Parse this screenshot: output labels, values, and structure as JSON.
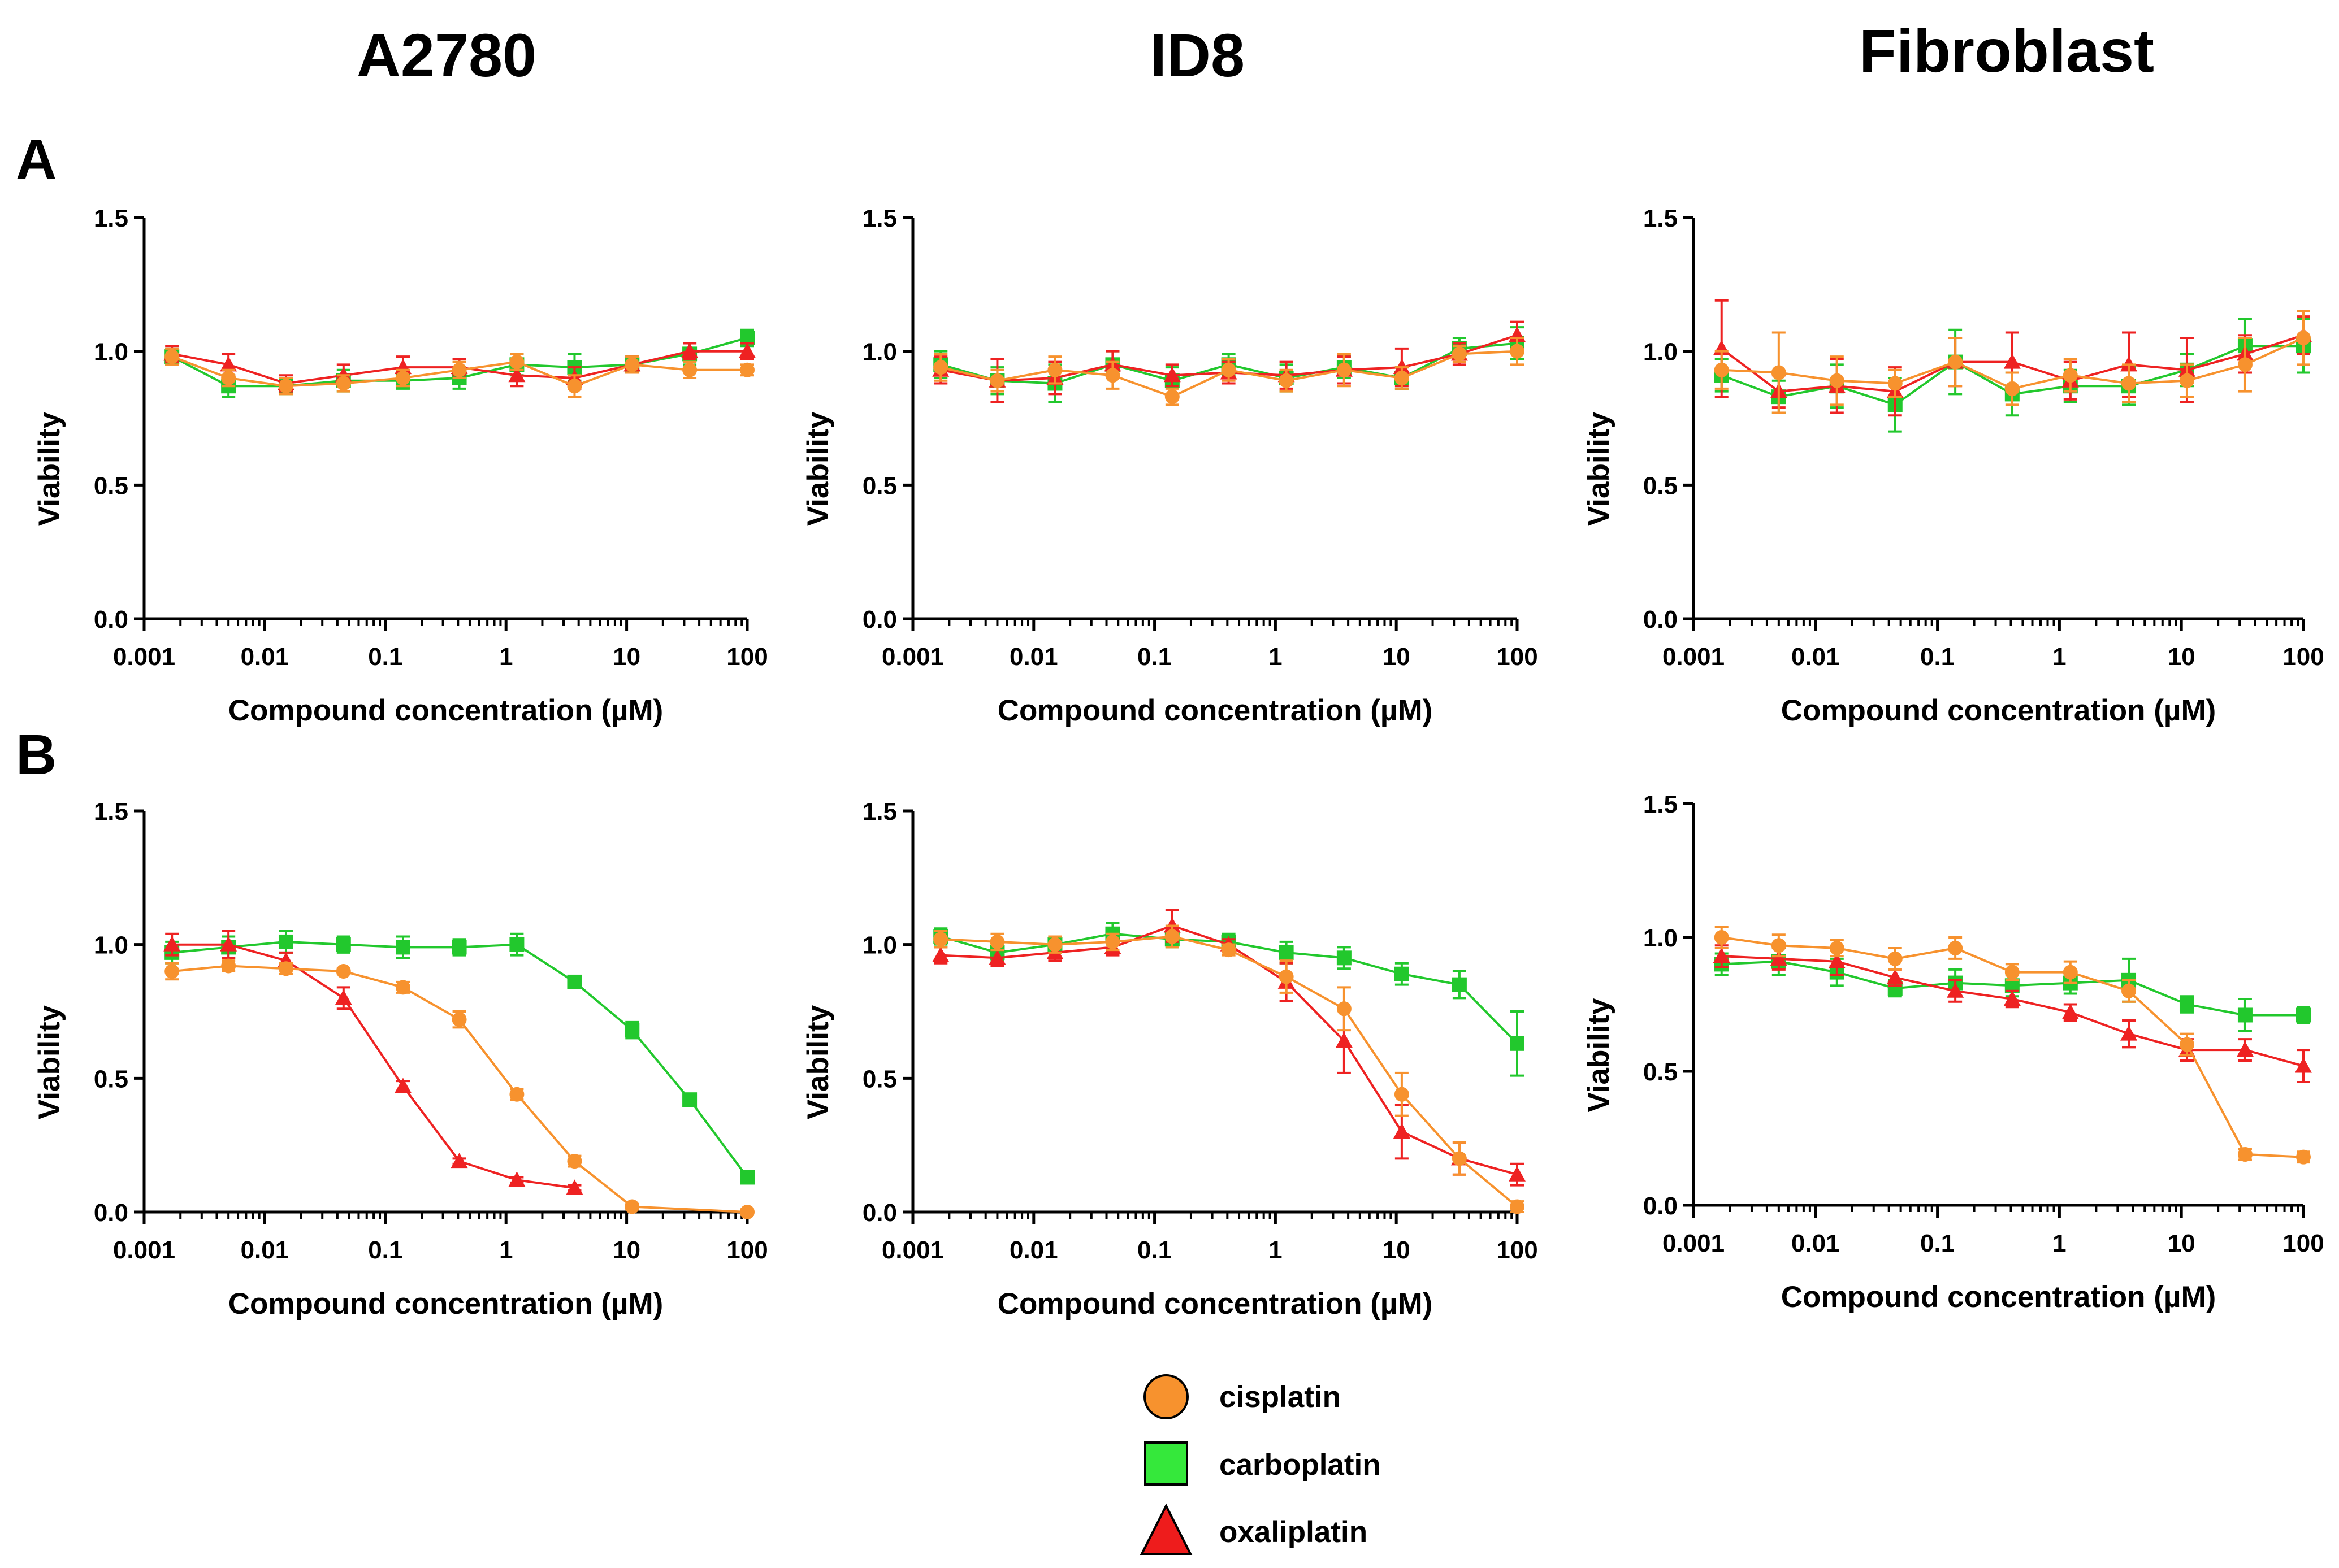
{
  "figure": {
    "columns": [
      "A2780",
      "ID8",
      "Fibroblast"
    ],
    "rows": [
      "A",
      "B"
    ]
  },
  "colors": {
    "cisplatin": "#f7922e",
    "carboplatin": "#22c82d",
    "oxaliplatin": "#ee2222"
  },
  "legend": [
    {
      "name": "cisplatin",
      "marker": "circle",
      "color": "#f7922e"
    },
    {
      "name": "carboplatin",
      "marker": "square",
      "color": "#35e83b"
    },
    {
      "name": "oxaliplatin",
      "marker": "triangle",
      "color": "#ee1c1c"
    }
  ],
  "chart_data": [
    {
      "id": "A-A2780",
      "type": "line",
      "row": "A",
      "column": "A2780",
      "xlabel": "Compound concentration (µM)",
      "ylabel": "Viability",
      "xscale": "log",
      "xlim": [
        0.001,
        100
      ],
      "ylim": [
        0,
        1.5
      ],
      "xticks": [
        "0.001",
        "0.01",
        "0.1",
        "1",
        "10",
        "100"
      ],
      "yticks": [
        "0.0",
        "0.5",
        "1.0",
        "1.5"
      ],
      "x": [
        0.0017,
        0.005,
        0.015,
        0.045,
        0.14,
        0.41,
        1.23,
        3.7,
        11.1,
        33.3,
        100
      ],
      "series": [
        {
          "name": "cisplatin",
          "values": [
            0.98,
            0.9,
            0.87,
            0.88,
            0.9,
            0.93,
            0.96,
            0.87,
            0.95,
            0.93,
            0.93
          ],
          "error": [
            0.03,
            0.03,
            0.03,
            0.03,
            0.03,
            0.03,
            0.03,
            0.04,
            0.03,
            0.03,
            0.02
          ]
        },
        {
          "name": "carboplatin",
          "values": [
            0.98,
            0.87,
            0.87,
            0.89,
            0.89,
            0.9,
            0.95,
            0.94,
            0.95,
            0.99,
            1.05
          ],
          "error": [
            0.03,
            0.04,
            0.03,
            0.04,
            0.03,
            0.04,
            0.04,
            0.05,
            0.03,
            0.04,
            0.03
          ]
        },
        {
          "name": "oxaliplatin",
          "values": [
            0.99,
            0.95,
            0.88,
            0.91,
            0.94,
            0.94,
            0.91,
            0.9,
            0.95,
            1.0,
            1.0
          ],
          "error": [
            0.03,
            0.04,
            0.03,
            0.04,
            0.04,
            0.03,
            0.04,
            0.04,
            0.03,
            0.03,
            0.03
          ]
        }
      ]
    },
    {
      "id": "A-ID8",
      "type": "line",
      "row": "A",
      "column": "ID8",
      "xlabel": "Compound concentration (µM)",
      "ylabel": "Viability",
      "xscale": "log",
      "xlim": [
        0.001,
        100
      ],
      "ylim": [
        0,
        1.5
      ],
      "xticks": [
        "0.001",
        "0.01",
        "0.1",
        "1",
        "10",
        "100"
      ],
      "yticks": [
        "0.0",
        "0.5",
        "1.0",
        "1.5"
      ],
      "x": [
        0.0017,
        0.005,
        0.015,
        0.045,
        0.14,
        0.41,
        1.23,
        3.7,
        11.1,
        33.3,
        100
      ],
      "series": [
        {
          "name": "cisplatin",
          "values": [
            0.94,
            0.89,
            0.93,
            0.91,
            0.83,
            0.93,
            0.89,
            0.93,
            0.9,
            0.99,
            1.0
          ],
          "error": [
            0.05,
            0.04,
            0.05,
            0.05,
            0.03,
            0.04,
            0.04,
            0.06,
            0.04,
            0.03,
            0.05
          ]
        },
        {
          "name": "carboplatin",
          "values": [
            0.95,
            0.89,
            0.88,
            0.95,
            0.89,
            0.95,
            0.9,
            0.94,
            0.9,
            1.01,
            1.03
          ],
          "error": [
            0.05,
            0.05,
            0.07,
            0.05,
            0.05,
            0.04,
            0.05,
            0.04,
            0.04,
            0.04,
            0.06
          ]
        },
        {
          "name": "oxaliplatin",
          "values": [
            0.93,
            0.89,
            0.9,
            0.95,
            0.91,
            0.92,
            0.91,
            0.93,
            0.94,
            0.99,
            1.06
          ],
          "error": [
            0.05,
            0.08,
            0.06,
            0.05,
            0.04,
            0.04,
            0.05,
            0.05,
            0.07,
            0.04,
            0.05
          ]
        }
      ]
    },
    {
      "id": "A-Fibroblast",
      "type": "line",
      "row": "A",
      "column": "Fibroblast",
      "xlabel": "Compound concentration (µM)",
      "ylabel": "Viability",
      "xscale": "log",
      "xlim": [
        0.001,
        100
      ],
      "ylim": [
        0,
        1.5
      ],
      "xticks": [
        "0.001",
        "0.01",
        "0.1",
        "1",
        "10",
        "100"
      ],
      "yticks": [
        "0.0",
        "0.5",
        "1.0",
        "1.5"
      ],
      "x": [
        0.0017,
        0.005,
        0.015,
        0.045,
        0.14,
        0.41,
        1.23,
        3.7,
        11.1,
        33.3,
        100
      ],
      "series": [
        {
          "name": "cisplatin",
          "values": [
            0.93,
            0.92,
            0.89,
            0.88,
            0.96,
            0.86,
            0.91,
            0.88,
            0.89,
            0.95,
            1.05
          ],
          "error": [
            0.07,
            0.15,
            0.09,
            0.05,
            0.09,
            0.06,
            0.06,
            0.07,
            0.06,
            0.1,
            0.1
          ]
        },
        {
          "name": "carboplatin",
          "values": [
            0.91,
            0.83,
            0.87,
            0.8,
            0.96,
            0.84,
            0.87,
            0.87,
            0.93,
            1.02,
            1.02
          ],
          "error": [
            0.06,
            0.06,
            0.08,
            0.1,
            0.12,
            0.08,
            0.06,
            0.07,
            0.06,
            0.1,
            0.1
          ]
        },
        {
          "name": "oxaliplatin",
          "values": [
            1.01,
            0.85,
            0.87,
            0.85,
            0.96,
            0.96,
            0.89,
            0.95,
            0.93,
            0.99,
            1.06
          ],
          "error": [
            0.18,
            0.06,
            0.1,
            0.09,
            0.09,
            0.11,
            0.07,
            0.12,
            0.12,
            0.07,
            0.07
          ]
        }
      ]
    },
    {
      "id": "B-A2780",
      "type": "line",
      "row": "B",
      "column": "A2780",
      "xlabel": "Compound concentration (µM)",
      "ylabel": "Viability",
      "xscale": "log",
      "xlim": [
        0.001,
        100
      ],
      "ylim": [
        0,
        1.5
      ],
      "xticks": [
        "0.001",
        "0.01",
        "0.1",
        "1",
        "10",
        "100"
      ],
      "yticks": [
        "0.0",
        "0.5",
        "1.0",
        "1.5"
      ],
      "x": [
        0.0017,
        0.005,
        0.015,
        0.045,
        0.14,
        0.41,
        1.23,
        3.7,
        11.1,
        33.3,
        100
      ],
      "series": [
        {
          "name": "cisplatin",
          "values": [
            0.9,
            0.92,
            0.91,
            0.9,
            0.84,
            0.72,
            0.44,
            0.19,
            0.02,
            null,
            0.0
          ],
          "error": [
            0.03,
            0.02,
            0.02,
            0.01,
            0.02,
            0.03,
            0.02,
            0.02,
            0.01,
            null,
            0.01
          ]
        },
        {
          "name": "carboplatin",
          "values": [
            0.97,
            0.99,
            1.01,
            1.0,
            0.99,
            0.99,
            1.0,
            0.86,
            0.68,
            0.42,
            0.13
          ],
          "error": [
            0.04,
            0.04,
            0.04,
            0.03,
            0.04,
            0.03,
            0.04,
            0.02,
            0.03,
            0.02,
            0.02
          ]
        },
        {
          "name": "oxaliplatin",
          "values": [
            1.0,
            1.0,
            0.94,
            0.8,
            0.47,
            0.19,
            0.12,
            0.09,
            null,
            null,
            null
          ],
          "error": [
            0.04,
            0.05,
            0.03,
            0.04,
            0.02,
            0.01,
            0.01,
            0.01,
            null,
            null,
            null
          ]
        }
      ]
    },
    {
      "id": "B-ID8",
      "type": "line",
      "row": "B",
      "column": "ID8",
      "xlabel": "Compound concentration (µM)",
      "ylabel": "Viability",
      "xscale": "log",
      "xlim": [
        0.001,
        100
      ],
      "ylim": [
        0,
        1.5
      ],
      "xticks": [
        "0.001",
        "0.01",
        "0.1",
        "1",
        "10",
        "100"
      ],
      "yticks": [
        "0.0",
        "0.5",
        "1.0",
        "1.5"
      ],
      "x": [
        0.0017,
        0.005,
        0.015,
        0.045,
        0.14,
        0.41,
        1.23,
        3.7,
        11.1,
        33.3,
        100
      ],
      "series": [
        {
          "name": "cisplatin",
          "values": [
            1.02,
            1.01,
            1.0,
            1.01,
            1.03,
            0.98,
            0.88,
            0.76,
            0.44,
            0.2,
            0.02
          ],
          "error": [
            0.03,
            0.03,
            0.03,
            0.03,
            0.04,
            0.02,
            0.06,
            0.08,
            0.08,
            0.06,
            0.02
          ]
        },
        {
          "name": "carboplatin",
          "values": [
            1.03,
            0.97,
            1.0,
            1.04,
            1.02,
            1.01,
            0.97,
            0.95,
            0.89,
            0.85,
            0.63
          ],
          "error": [
            0.03,
            0.03,
            0.03,
            0.04,
            0.03,
            0.03,
            0.04,
            0.04,
            0.04,
            0.05,
            0.12
          ]
        },
        {
          "name": "oxaliplatin",
          "values": [
            0.96,
            0.95,
            0.97,
            0.99,
            1.07,
            1.0,
            0.86,
            0.64,
            0.3,
            0.2,
            0.14
          ],
          "error": [
            0.03,
            0.03,
            0.03,
            0.03,
            0.06,
            0.02,
            0.07,
            0.12,
            0.1,
            0.06,
            0.04
          ]
        }
      ]
    },
    {
      "id": "B-Fibroblast",
      "type": "line",
      "row": "B",
      "column": "Fibroblast",
      "xlabel": "Compound concentration (µM)",
      "ylabel": "Viability",
      "xscale": "log",
      "xlim": [
        0.001,
        100
      ],
      "ylim": [
        0,
        1.5
      ],
      "xticks": [
        "0.001",
        "0.01",
        "0.1",
        "1",
        "10",
        "100"
      ],
      "yticks": [
        "0.0",
        "0.5",
        "1.0",
        "1.5"
      ],
      "x": [
        0.0017,
        0.005,
        0.015,
        0.045,
        0.14,
        0.41,
        1.23,
        3.7,
        11.1,
        33.3,
        100
      ],
      "series": [
        {
          "name": "cisplatin",
          "values": [
            1.0,
            0.97,
            0.96,
            0.92,
            0.96,
            0.87,
            0.87,
            0.8,
            0.6,
            0.19,
            0.18
          ],
          "error": [
            0.04,
            0.04,
            0.03,
            0.04,
            0.04,
            0.03,
            0.04,
            0.04,
            0.04,
            0.02,
            0.02
          ]
        },
        {
          "name": "carboplatin",
          "values": [
            0.9,
            0.91,
            0.87,
            0.81,
            0.83,
            0.82,
            0.83,
            0.84,
            0.75,
            0.71,
            0.71
          ],
          "error": [
            0.04,
            0.05,
            0.05,
            0.03,
            0.05,
            0.04,
            0.04,
            0.08,
            0.03,
            0.06,
            0.03
          ]
        },
        {
          "name": "oxaliplatin",
          "values": [
            0.93,
            0.92,
            0.91,
            0.85,
            0.8,
            0.77,
            0.72,
            0.64,
            0.58,
            0.58,
            0.52
          ],
          "error": [
            0.04,
            0.04,
            0.05,
            0.03,
            0.04,
            0.03,
            0.03,
            0.05,
            0.04,
            0.04,
            0.06
          ]
        }
      ]
    }
  ]
}
